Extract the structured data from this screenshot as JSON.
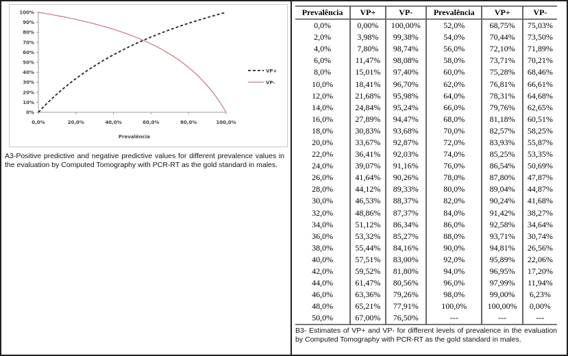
{
  "chart_data": {
    "type": "line",
    "xlabel": "Prevalência",
    "ylabel": "",
    "xlim": [
      0,
      100
    ],
    "ylim": [
      0,
      100
    ],
    "x_tick_labels": [
      "0,0%",
      "20,0%",
      "40,0%",
      "60,0%",
      "80,0%",
      "100,0%"
    ],
    "y_tick_labels": [
      "0%",
      "10%",
      "20%",
      "30%",
      "40%",
      "50%",
      "60%",
      "70%",
      "80%",
      "90%",
      "100%"
    ],
    "legend_position": "right",
    "grid": false,
    "x": [
      0,
      2,
      4,
      6,
      8,
      10,
      12,
      14,
      16,
      18,
      20,
      22,
      24,
      26,
      28,
      30,
      32,
      34,
      36,
      38,
      40,
      42,
      44,
      46,
      48,
      50,
      52,
      54,
      56,
      58,
      60,
      62,
      64,
      66,
      68,
      70,
      72,
      74,
      76,
      78,
      80,
      82,
      84,
      86,
      88,
      90,
      92,
      94,
      96,
      98,
      100
    ],
    "series": [
      {
        "name": "VP+",
        "color": "#222222",
        "style": "dashed",
        "values": [
          0,
          3.98,
          7.8,
          11.47,
          15.01,
          18.41,
          21.68,
          24.84,
          27.89,
          30.83,
          33.67,
          36.41,
          39.07,
          41.64,
          44.12,
          46.53,
          48.86,
          51.12,
          53.32,
          55.44,
          57.51,
          59.52,
          61.47,
          63.36,
          65.21,
          67.0,
          68.75,
          70.44,
          72.1,
          73.71,
          75.28,
          76.81,
          78.31,
          79.76,
          81.18,
          82.57,
          83.93,
          85.25,
          86.54,
          87.8,
          89.04,
          90.24,
          91.42,
          92.58,
          93.71,
          94.81,
          95.89,
          96.95,
          97.99,
          99.0,
          100.0
        ]
      },
      {
        "name": "VP-",
        "color": "#c0787a",
        "style": "solid",
        "values": [
          100,
          99.38,
          98.74,
          98.08,
          97.4,
          96.7,
          95.98,
          95.24,
          94.47,
          93.68,
          92.87,
          92.03,
          91.16,
          90.26,
          89.33,
          88.37,
          87.37,
          86.34,
          85.27,
          84.16,
          83.0,
          81.8,
          80.56,
          79.26,
          77.91,
          76.5,
          75.03,
          73.5,
          71.89,
          70.21,
          68.46,
          66.61,
          64.68,
          62.65,
          60.51,
          58.25,
          55.87,
          53.35,
          50.69,
          47.87,
          44.87,
          41.68,
          38.27,
          34.64,
          30.74,
          26.56,
          22.06,
          17.2,
          11.94,
          6.23,
          0.0
        ]
      }
    ]
  },
  "captions": {
    "a3": "A3-Positive predictive and negative predictive values for different prevalence values in the evaluation by Computed Tomography with PCR-RT as the gold standard in males.",
    "b3": "B3- Estimates of VP+ and VP- for different levels of prevalence in the evaluation by Computed Tomography with PCR-RT as the gold standard in males."
  },
  "table": {
    "headers": [
      "Prevalência",
      "VP+",
      "VP-",
      "Prevalência",
      "VP+",
      "VP-"
    ],
    "rows": [
      [
        "0,0%",
        "0,00%",
        "100,00%",
        "52,0%",
        "68,75%",
        "75,03%"
      ],
      [
        "2,0%",
        "3,98%",
        "99,38%",
        "54,0%",
        "70,44%",
        "73,50%"
      ],
      [
        "4,0%",
        "7,80%",
        "98,74%",
        "56,0%",
        "72,10%",
        "71,89%"
      ],
      [
        "6,0%",
        "11,47%",
        "98,08%",
        "58,0%",
        "73,71%",
        "70,21%"
      ],
      [
        "8,0%",
        "15,01%",
        "97,40%",
        "60,0%",
        "75,28%",
        "68,46%"
      ],
      [
        "10,0%",
        "18,41%",
        "96,70%",
        "62,0%",
        "76,81%",
        "66,61%"
      ],
      [
        "12,0%",
        "21,68%",
        "95,98%",
        "64,0%",
        "78,31%",
        "64,68%"
      ],
      [
        "14,0%",
        "24,84%",
        "95,24%",
        "66,0%",
        "79,76%",
        "62,65%"
      ],
      [
        "16,0%",
        "27,89%",
        "94,47%",
        "68,0%",
        "81,18%",
        "60,51%"
      ],
      [
        "18,0%",
        "30,83%",
        "93,68%",
        "70,0%",
        "82,57%",
        "58,25%"
      ],
      [
        "20,0%",
        "33,67%",
        "92,87%",
        "72,0%",
        "83,93%",
        "55,87%"
      ],
      [
        "22,0%",
        "36,41%",
        "92,03%",
        "74,0%",
        "85,25%",
        "53,35%"
      ],
      [
        "24,0%",
        "39,07%",
        "91,16%",
        "76,0%",
        "86,54%",
        "50,69%"
      ],
      [
        "26,0%",
        "41,64%",
        "90,26%",
        "78,0%",
        "87,80%",
        "47,87%"
      ],
      [
        "28,0%",
        "44,12%",
        "89,33%",
        "80,0%",
        "89,04%",
        "44,87%"
      ],
      [
        "30,0%",
        "46,53%",
        "88,37%",
        "82,0%",
        "90,24%",
        "41,68%"
      ],
      [
        "32,0%",
        "48,86%",
        "87,37%",
        "84,0%",
        "91,42%",
        "38,27%"
      ],
      [
        "34,0%",
        "51,12%",
        "86,34%",
        "86,0%",
        "92,58%",
        "34,64%"
      ],
      [
        "36,0%",
        "53,32%",
        "85,27%",
        "88,0%",
        "93,71%",
        "30,74%"
      ],
      [
        "38,0%",
        "55,44%",
        "84,16%",
        "90,0%",
        "94,81%",
        "26,56%"
      ],
      [
        "40,0%",
        "57,51%",
        "83,00%",
        "92,0%",
        "95,89%",
        "22,06%"
      ],
      [
        "42,0%",
        "59,52%",
        "81,80%",
        "94,0%",
        "96,95%",
        "17,20%"
      ],
      [
        "44,0%",
        "61,47%",
        "80,56%",
        "96,0%",
        "97,99%",
        "11,94%"
      ],
      [
        "46,0%",
        "63,36%",
        "79,26%",
        "98,0%",
        "99,00%",
        "6,23%"
      ],
      [
        "48,0%",
        "65,21%",
        "77,91%",
        "100,0%",
        "100,00%",
        "0,00%"
      ],
      [
        "50,0%",
        "67,00%",
        "76,50%",
        "---",
        "---",
        "---"
      ]
    ]
  }
}
